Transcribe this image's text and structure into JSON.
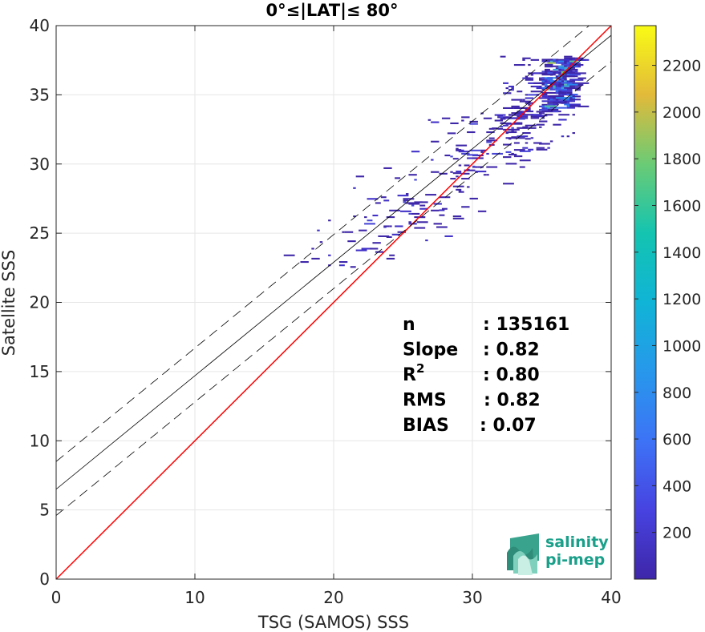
{
  "chart_data": {
    "type": "heatmap",
    "title": "0°≤|LAT|≤ 80°",
    "xlabel": "TSG (SAMOS) SSS",
    "ylabel": "Satellite SSS",
    "xlim": [
      0,
      40
    ],
    "ylim": [
      0,
      40
    ],
    "xticks": [
      "0",
      "10",
      "20",
      "30",
      "40"
    ],
    "yticks": [
      "0",
      "5",
      "10",
      "15",
      "20",
      "25",
      "30",
      "35",
      "40"
    ],
    "grid": true,
    "reference_line": {
      "color": "#ff0000",
      "x": [
        0,
        40
      ],
      "y": [
        0,
        40
      ]
    },
    "fit_line": {
      "color": "#000000",
      "intercept": 6.5,
      "slope": 0.82
    },
    "dashed_offsets": [
      2.0,
      -1.9
    ],
    "colorbar": {
      "min": 0,
      "max": 2370,
      "ticks": [
        "200",
        "400",
        "600",
        "800",
        "1000",
        "1200",
        "1400",
        "1600",
        "1800",
        "2000",
        "2200"
      ],
      "colormap": "parula"
    },
    "density_clusters": [
      {
        "x": [
          32.0,
          37.8
        ],
        "y": [
          30.5,
          37.8
        ],
        "density": 0.18
      },
      {
        "x": [
          35.0,
          37.3
        ],
        "y": [
          34.0,
          37.6
        ],
        "density": 0.6
      },
      {
        "x": [
          27.0,
          35.0
        ],
        "y": [
          26.0,
          33.5
        ],
        "density": 0.05
      },
      {
        "x": [
          16.0,
          28.0
        ],
        "y": [
          22.5,
          28.0
        ],
        "density": 0.04
      },
      {
        "x": [
          21.0,
          35.0
        ],
        "y": [
          24.0,
          34.0
        ],
        "density": 0.02
      }
    ],
    "stats": [
      {
        "label": "n",
        "value": ": 135161"
      },
      {
        "label": "Slope",
        "value": ": 0.82"
      },
      {
        "label": "R",
        "sup": "2",
        "value": ": 0.80"
      },
      {
        "label": "RMS",
        "value": ": 0.82"
      },
      {
        "label": "BIAS",
        "value": ": 0.07"
      }
    ]
  },
  "logo": {
    "line1": "salinity",
    "line2": "pi-mep",
    "color": "#1aa08a"
  }
}
